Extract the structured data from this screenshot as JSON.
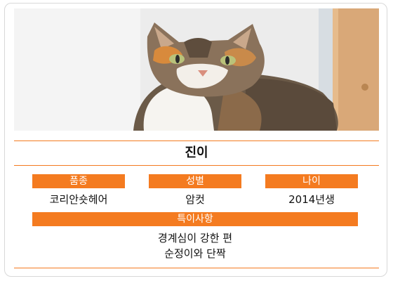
{
  "profile": {
    "name": "진이",
    "photo_alt_icon": "cat-photo",
    "fields": [
      {
        "label": "품종",
        "value": "코리안숏헤어"
      },
      {
        "label": "성별",
        "value": "암컷"
      },
      {
        "label": "나이",
        "value": "2014년생"
      }
    ],
    "notes_label": "특이사항",
    "notes": [
      "경계심이 강한 편",
      "순정이와 단짝"
    ]
  },
  "colors": {
    "accent": "#f47b20"
  }
}
